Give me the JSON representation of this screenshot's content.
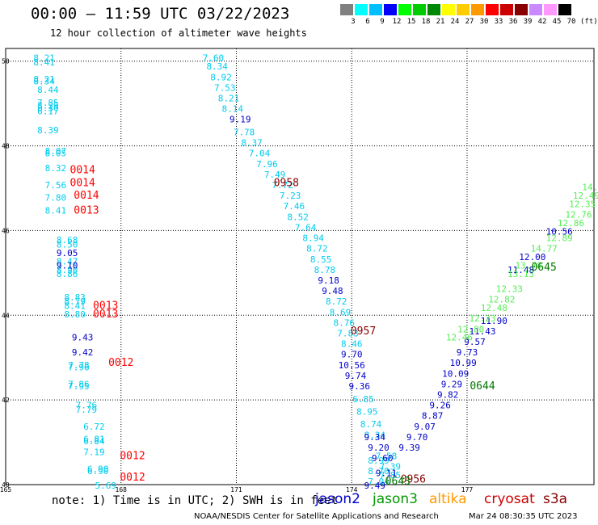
{
  "header": {
    "title": "00:00 – 11:59 UTC 03/22/2023",
    "subtitle": "12 hour collection of altimeter wave heights",
    "units": "(ft)"
  },
  "colorbar": {
    "labels": [
      "3",
      "6",
      "9",
      "12",
      "15",
      "18",
      "21",
      "24",
      "27",
      "30",
      "33",
      "36",
      "39",
      "42",
      "45",
      "70"
    ],
    "colors": [
      "#808080",
      "#00ffff",
      "#00bfff",
      "#0000ff",
      "#00ff00",
      "#00cc00",
      "#008800",
      "#ffff00",
      "#ffcc00",
      "#ff9900",
      "#ff0000",
      "#cc0000",
      "#880000",
      "#cc88ff",
      "#ff99ff",
      "#000000"
    ]
  },
  "footer": {
    "note": "note: 1) Time is in UTC; 2) SWH is in feet",
    "satellites": [
      {
        "name": "jason2",
        "color": "#0000cc"
      },
      {
        "name": "jason3",
        "color": "#009900"
      },
      {
        "name": "altika",
        "color": "#ff9900"
      },
      {
        "name": "cryosat",
        "color": "#cc0000"
      },
      {
        "name": "s3a",
        "color": "#880000"
      }
    ],
    "credit": "NOAA/NESDIS Center for Satellite Applications and Research",
    "timestamp": "Mar 24 08:30:35 UTC 2023"
  },
  "chart_data": {
    "type": "scatter",
    "title": "12 hour collection of altimeter wave heights",
    "x_ticks": [
      "165",
      "168",
      "171",
      "174",
      "177"
    ],
    "y_ticks": [
      "40",
      "42",
      "44",
      "46",
      "48",
      "50"
    ],
    "xlim": [
      165,
      180.3
    ],
    "ylim": [
      40,
      50.3
    ],
    "grid": true,
    "colors": {
      "cyan": "#00ccee",
      "blue": "#0000cc",
      "lightgreen": "#55ee55",
      "red": "#ff0000",
      "darkred": "#880000",
      "darkgreen": "#007700"
    },
    "tracks": [
      {
        "color": "cyan",
        "points": [
          [
            166.0,
            50.0,
            "8.21"
          ],
          [
            166.0,
            49.9,
            "8.41"
          ],
          [
            166.0,
            49.5,
            "8.21"
          ],
          [
            166.0,
            49.45,
            "8.34"
          ],
          [
            166.1,
            49.25,
            "8.44"
          ],
          [
            166.1,
            48.95,
            "7.85"
          ],
          [
            166.1,
            48.88,
            "8.29"
          ],
          [
            166.1,
            48.82,
            "8.30"
          ],
          [
            166.1,
            48.75,
            "6.17"
          ],
          [
            166.1,
            48.3,
            "8.39"
          ],
          [
            166.3,
            47.8,
            "8.07"
          ],
          [
            166.3,
            47.75,
            "8.05"
          ],
          [
            166.3,
            47.4,
            "8.32"
          ],
          [
            166.3,
            47.0,
            "7.56"
          ],
          [
            166.3,
            46.7,
            "7.80"
          ],
          [
            166.3,
            46.4,
            "8.41"
          ],
          [
            166.6,
            45.7,
            "8.68"
          ],
          [
            166.6,
            45.6,
            "8.50"
          ],
          [
            166.6,
            45.2,
            "8.47"
          ],
          [
            166.6,
            45.0,
            "8.90"
          ],
          [
            166.6,
            44.9,
            "8.86"
          ],
          [
            166.8,
            44.35,
            "8.83"
          ],
          [
            166.8,
            44.25,
            "8.79"
          ],
          [
            166.8,
            44.15,
            "8.41"
          ],
          [
            166.8,
            43.95,
            "8.80"
          ],
          [
            166.9,
            42.75,
            "7.78"
          ],
          [
            166.9,
            42.7,
            "7.96"
          ],
          [
            166.9,
            42.3,
            "7.86"
          ],
          [
            166.9,
            42.25,
            "7.95"
          ],
          [
            167.1,
            41.8,
            "7.76"
          ],
          [
            167.1,
            41.7,
            "7.79"
          ],
          [
            167.3,
            41.3,
            "6.72"
          ],
          [
            167.3,
            41.0,
            "6.81"
          ],
          [
            167.3,
            40.95,
            "6.84"
          ],
          [
            167.3,
            40.7,
            "7.19"
          ],
          [
            167.4,
            40.3,
            "6.90"
          ],
          [
            167.4,
            40.25,
            "6.90"
          ],
          [
            167.6,
            39.9,
            "5.69"
          ],
          [
            170.4,
            50.0,
            "7.60"
          ],
          [
            170.5,
            49.8,
            "8.34"
          ],
          [
            170.6,
            49.55,
            "8.92"
          ],
          [
            170.7,
            49.3,
            "7.53"
          ],
          [
            170.8,
            49.05,
            "8.21"
          ],
          [
            170.9,
            48.8,
            "8.14"
          ],
          [
            171.2,
            48.25,
            "7.78"
          ],
          [
            171.4,
            48.0,
            "8.37"
          ],
          [
            171.6,
            47.75,
            "7.04"
          ],
          [
            171.8,
            47.5,
            "7.96"
          ],
          [
            172.0,
            47.25,
            "7.49"
          ],
          [
            172.2,
            47.0,
            "7.72"
          ],
          [
            172.4,
            46.75,
            "7.23"
          ],
          [
            172.5,
            46.5,
            "7.46"
          ],
          [
            172.6,
            46.25,
            "8.52"
          ],
          [
            172.8,
            46.0,
            "7.64"
          ],
          [
            173.0,
            45.75,
            "8.94"
          ],
          [
            173.1,
            45.5,
            "8.72"
          ],
          [
            173.2,
            45.25,
            "8.55"
          ],
          [
            173.3,
            45.0,
            "8.78"
          ],
          [
            173.6,
            44.25,
            "8.72"
          ],
          [
            173.7,
            44.0,
            "8.69"
          ],
          [
            173.8,
            43.75,
            "8.76"
          ],
          [
            173.9,
            43.5,
            "7.83"
          ],
          [
            174.0,
            43.25,
            "8.46"
          ],
          [
            174.3,
            41.95,
            "6.85"
          ],
          [
            174.4,
            41.65,
            "8.95"
          ],
          [
            174.5,
            41.35,
            "8.74"
          ],
          [
            174.6,
            41.1,
            "8.34"
          ],
          [
            174.7,
            40.5,
            "8.99"
          ],
          [
            174.7,
            40.25,
            "8.70"
          ],
          [
            174.7,
            40.0,
            "7.04"
          ],
          [
            174.9,
            40.6,
            "7.58"
          ],
          [
            175.0,
            40.35,
            "7.39"
          ],
          [
            175.0,
            40.15,
            "7.85"
          ]
        ]
      },
      {
        "color": "blue",
        "points": [
          [
            166.6,
            45.4,
            "9.05"
          ],
          [
            166.6,
            45.1,
            "9.10"
          ],
          [
            167.0,
            43.4,
            "9.43"
          ],
          [
            167.0,
            43.05,
            "9.42"
          ],
          [
            171.1,
            48.55,
            "9.19"
          ],
          [
            173.4,
            44.75,
            "9.18"
          ],
          [
            173.5,
            44.5,
            "9.48"
          ],
          [
            174.0,
            43.0,
            "9.70"
          ],
          [
            174.0,
            42.75,
            "10.56"
          ],
          [
            174.1,
            42.5,
            "9.74"
          ],
          [
            174.2,
            42.25,
            "9.36"
          ],
          [
            174.6,
            41.05,
            "9.34"
          ],
          [
            174.7,
            40.8,
            "9.20"
          ],
          [
            174.8,
            40.55,
            "9.60"
          ],
          [
            174.9,
            40.2,
            "9.11"
          ],
          [
            174.6,
            39.9,
            "9.49"
          ],
          [
            175.5,
            40.8,
            "9.39"
          ],
          [
            175.7,
            41.05,
            "9.70"
          ],
          [
            175.9,
            41.3,
            "9.07"
          ],
          [
            176.1,
            41.55,
            "8.87"
          ],
          [
            176.3,
            41.8,
            "9.26"
          ],
          [
            176.5,
            42.05,
            "9.82"
          ],
          [
            176.6,
            42.3,
            "9.29"
          ],
          [
            176.7,
            42.55,
            "10.09"
          ],
          [
            176.9,
            42.8,
            "10.99"
          ],
          [
            177.0,
            43.05,
            "9.73"
          ],
          [
            177.2,
            43.3,
            "9.57"
          ],
          [
            177.4,
            43.55,
            "11.43"
          ],
          [
            177.7,
            43.8,
            "11.90"
          ],
          [
            178.4,
            45.0,
            "11.48"
          ],
          [
            178.7,
            45.3,
            "12.00"
          ],
          [
            179.4,
            45.9,
            "10.56"
          ]
        ]
      },
      {
        "color": "lightgreen",
        "points": [
          [
            176.8,
            43.4,
            "12.46"
          ],
          [
            177.1,
            43.6,
            "12.80"
          ],
          [
            177.4,
            43.85,
            "12.23"
          ],
          [
            177.7,
            44.1,
            "12.48"
          ],
          [
            177.9,
            44.3,
            "12.82"
          ],
          [
            178.1,
            44.55,
            "12.33"
          ],
          [
            178.4,
            44.9,
            "13.13"
          ],
          [
            178.6,
            45.1,
            "13.78"
          ],
          [
            179.0,
            45.5,
            "14.77"
          ],
          [
            179.4,
            45.75,
            "12.89"
          ],
          [
            179.7,
            46.1,
            "12.86"
          ],
          [
            179.9,
            46.3,
            "12.76"
          ],
          [
            180.0,
            46.55,
            "12.35"
          ],
          [
            180.1,
            46.75,
            "12.49"
          ],
          [
            180.2,
            46.95,
            "14."
          ]
        ]
      },
      {
        "color": "red",
        "points": [
          [
            167.0,
            47.35,
            "0014"
          ],
          [
            167.0,
            47.05,
            "0014"
          ],
          [
            167.1,
            46.75,
            "0014"
          ],
          [
            167.1,
            46.4,
            "0013"
          ],
          [
            167.6,
            44.15,
            "0013"
          ],
          [
            167.6,
            43.95,
            "0013"
          ],
          [
            168.0,
            42.8,
            "0012"
          ],
          [
            168.3,
            40.6,
            "0012"
          ],
          [
            168.3,
            40.1,
            "0012"
          ]
        ]
      },
      {
        "color": "darkred",
        "points": [
          [
            172.3,
            47.05,
            "0958"
          ],
          [
            174.3,
            43.55,
            "0957"
          ],
          [
            175.6,
            40.05,
            "0956"
          ]
        ]
      },
      {
        "color": "darkgreen",
        "points": [
          [
            179.0,
            45.05,
            "0645"
          ],
          [
            177.4,
            42.25,
            "0644"
          ],
          [
            175.2,
            40.0,
            "0643"
          ]
        ]
      }
    ]
  }
}
